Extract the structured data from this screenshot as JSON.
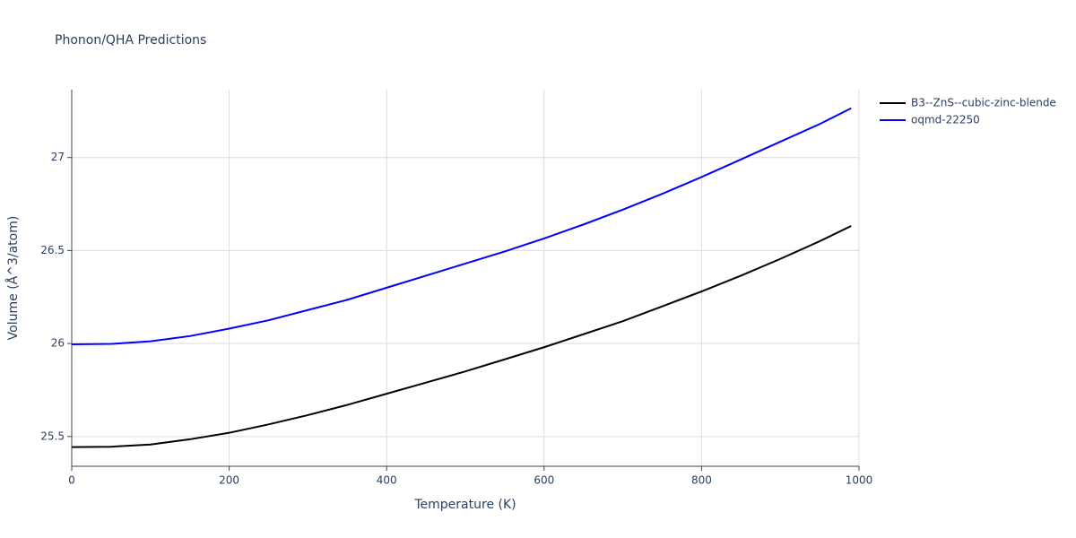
{
  "chart_data": {
    "type": "line",
    "title": "Phonon/QHA Predictions",
    "x_label": "Temperature (K)",
    "y_label": "Volume (Å^3/atom)",
    "x": [
      0,
      50,
      100,
      150,
      200,
      250,
      300,
      350,
      400,
      450,
      500,
      550,
      600,
      650,
      700,
      750,
      800,
      850,
      900,
      950,
      990
    ],
    "series": [
      {
        "name": "B3--ZnS--cubic-zinc-blende",
        "color": "#000000",
        "values": [
          25.443,
          25.445,
          25.457,
          25.485,
          25.52,
          25.565,
          25.615,
          25.67,
          25.73,
          25.79,
          25.85,
          25.915,
          25.98,
          26.05,
          26.12,
          26.2,
          26.28,
          26.365,
          26.455,
          26.55,
          26.632
        ]
      },
      {
        "name": "oqmd-22250",
        "color": "#0000ff",
        "values": [
          25.996,
          25.998,
          26.012,
          26.04,
          26.08,
          26.125,
          26.18,
          26.235,
          26.3,
          26.365,
          26.43,
          26.495,
          26.565,
          26.64,
          26.72,
          26.805,
          26.895,
          26.99,
          27.085,
          27.18,
          27.265
        ]
      }
    ],
    "xlim": [
      0,
      1000
    ],
    "xticks": [
      0,
      200,
      400,
      600,
      800,
      1000
    ],
    "ylim": [
      25.34,
      27.365
    ],
    "yticks": [
      25.5,
      26,
      26.5,
      27
    ],
    "grid": true,
    "legend": "outside-right"
  }
}
